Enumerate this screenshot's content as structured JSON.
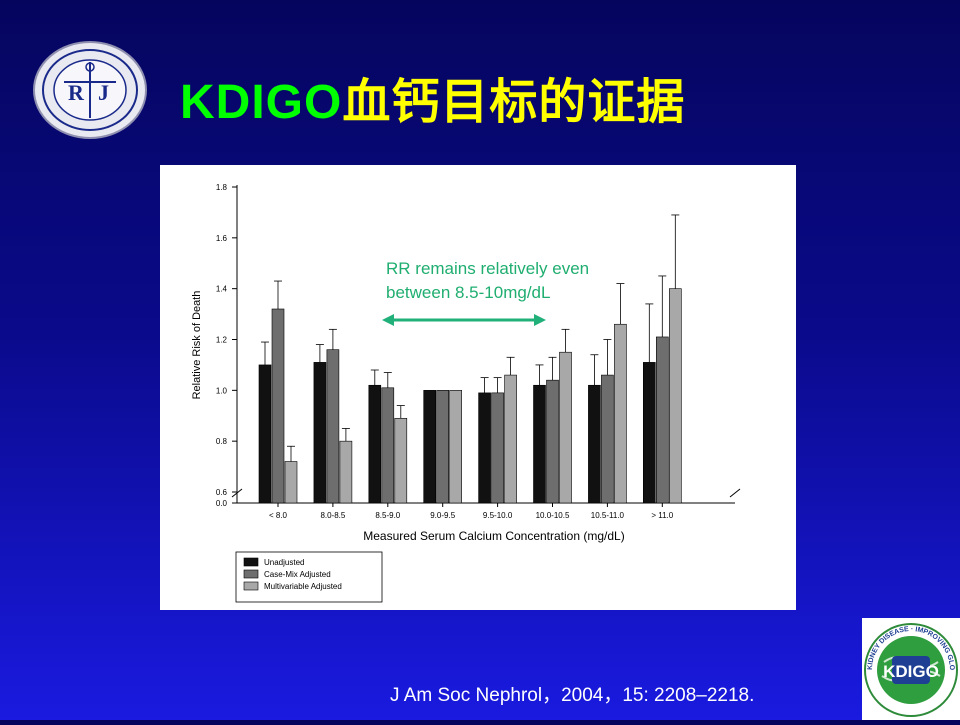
{
  "slide": {
    "title_en": "KDIGO",
    "title_cn": "血钙目标的证据",
    "annotation": "RR remains relatively even between 8.5-10mg/dL",
    "citation": "J Am Soc Nephrol，2004，15: 2208–2218.",
    "logo_left_text": "RJ",
    "logo_right_text": "KDIGO",
    "logo_right_ring_text": "KIDNEY DISEASE · IMPROVING GLOBAL OUTCOMES"
  },
  "colors": {
    "title_en": "#00ff00",
    "title_cn": "#ffff00",
    "annotation": "#1fae70",
    "arrow": "#22b07a",
    "series": [
      "#111111",
      "#6e6e6e",
      "#a8a8a8"
    ]
  },
  "chart_data": {
    "type": "bar",
    "xlabel": "Measured Serum Calcium Concentration (mg/dL)",
    "ylabel": "Relative Risk of Death",
    "ylim": [
      0.6,
      1.8
    ],
    "y_ticks": [
      "0.0",
      "0.6",
      "0.8",
      "1.0",
      "1.2",
      "1.4",
      "1.6",
      "1.8"
    ],
    "axis_break": true,
    "categories": [
      "< 8.0",
      "8.0-8.5",
      "8.5-9.0",
      "9.0-9.5",
      "9.5-10.0",
      "10.0-10.5",
      "10.5-11.0",
      "> 11.0"
    ],
    "series": [
      {
        "name": "Unadjusted",
        "values": [
          1.1,
          1.11,
          1.02,
          1.0,
          0.99,
          1.02,
          1.02,
          1.11
        ],
        "upper": [
          1.19,
          1.18,
          1.08,
          null,
          1.05,
          1.1,
          1.14,
          1.34
        ]
      },
      {
        "name": "Case-Mix Adjusted",
        "values": [
          1.32,
          1.16,
          1.01,
          1.0,
          0.99,
          1.04,
          1.06,
          1.21
        ],
        "upper": [
          1.43,
          1.24,
          1.07,
          null,
          1.05,
          1.13,
          1.2,
          1.45
        ]
      },
      {
        "name": "Multivariable Adjusted",
        "values": [
          0.72,
          0.8,
          0.89,
          1.0,
          1.06,
          1.15,
          1.26,
          1.4
        ],
        "upper": [
          0.78,
          0.85,
          0.94,
          null,
          1.13,
          1.24,
          1.42,
          1.69
        ]
      }
    ],
    "legend": "bottom-left",
    "grid": false
  }
}
